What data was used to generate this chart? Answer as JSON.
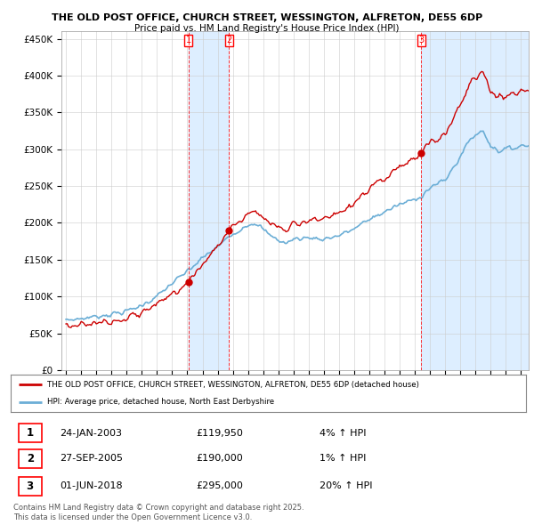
{
  "title1": "THE OLD POST OFFICE, CHURCH STREET, WESSINGTON, ALFRETON, DE55 6DP",
  "title2": "Price paid vs. HM Land Registry's House Price Index (HPI)",
  "legend_line1": "THE OLD POST OFFICE, CHURCH STREET, WESSINGTON, ALFRETON, DE55 6DP (detached house)",
  "legend_line2": "HPI: Average price, detached house, North East Derbyshire",
  "transactions": [
    {
      "num": 1,
      "date": "24-JAN-2003",
      "price": "£119,950",
      "hpi": "4% ↑ HPI"
    },
    {
      "num": 2,
      "date": "27-SEP-2005",
      "price": "£190,000",
      "hpi": "1% ↑ HPI"
    },
    {
      "num": 3,
      "date": "01-JUN-2018",
      "price": "£295,000",
      "hpi": "20% ↑ HPI"
    }
  ],
  "footer": "Contains HM Land Registry data © Crown copyright and database right 2025.\nThis data is licensed under the Open Government Licence v3.0.",
  "property_color": "#cc0000",
  "hpi_color": "#6baed6",
  "shade_color": "#ddeeff",
  "ylim": [
    0,
    450000
  ],
  "yticks": [
    0,
    50000,
    100000,
    150000,
    200000,
    250000,
    300000,
    350000,
    400000,
    450000
  ],
  "background_color": "#ffffff",
  "grid_color": "#cccccc",
  "transaction_years": [
    2003.07,
    2005.75,
    2018.42
  ],
  "transaction_prices": [
    119950,
    190000,
    295000
  ]
}
